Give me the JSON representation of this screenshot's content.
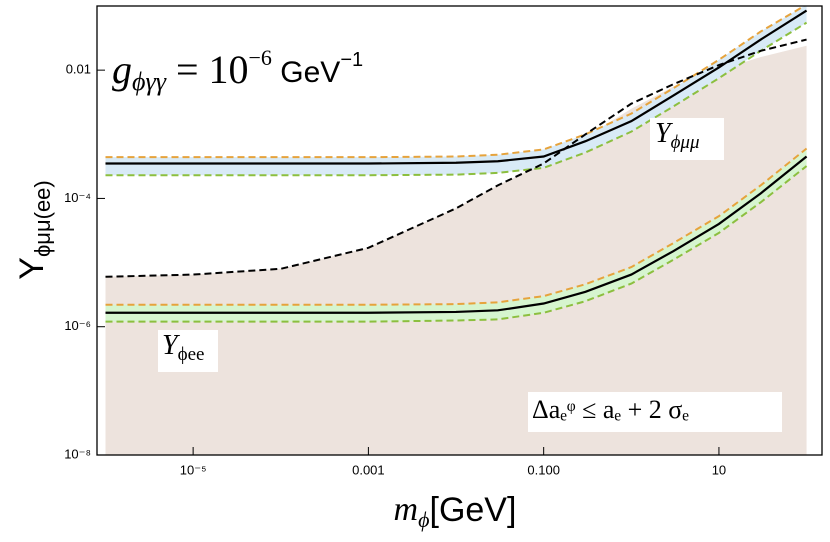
{
  "chart_data": {
    "type": "line",
    "xlog": true,
    "ylog": true,
    "xlim": [
      8e-07,
      150
    ],
    "ylim": [
      1e-08,
      0.1
    ],
    "xticks": [
      {
        "value": 1e-05,
        "label": "10⁻⁵"
      },
      0.001,
      {
        "value": 0.1,
        "label": "0.100"
      },
      10
    ],
    "yticks": [
      {
        "value": 1e-08,
        "label": "10⁻⁸"
      },
      {
        "value": 1e-06,
        "label": "10⁻⁶"
      },
      {
        "value": 0.0001,
        "label": "10⁻⁴"
      },
      0.01
    ],
    "x_label": {
      "main": "m",
      "sub": "ϕ",
      "rest": "[GeV]"
    },
    "y_label": {
      "main": "Y",
      "sub": "ϕμμ(ee)"
    },
    "annotations": {
      "coupling": {
        "main": "g",
        "sub": "ϕγγ",
        "rest": " = 10",
        "sup": "−6",
        "unit": " GeV",
        "unit_sup": "−1"
      },
      "mumu": {
        "main": "Y",
        "sub": "ϕμμ"
      },
      "ee": {
        "main": "Y",
        "sub": "ϕee"
      },
      "bound": "Δaₑᵠ ≤ aₑ + 2 σₑ"
    },
    "x": [
      1e-06,
      1e-05,
      0.0001,
      0.001,
      0.01,
      0.03,
      0.1,
      0.3,
      1,
      3,
      10,
      30,
      100
    ],
    "region": {
      "color": "#ede3dd",
      "values": [
        6e-06,
        6.5e-06,
        8e-06,
        1.7e-05,
        7e-05,
        0.00016,
        0.00035,
        0.0009,
        0.0025,
        0.0055,
        0.01,
        0.016,
        0.024
      ]
    },
    "series": [
      {
        "color": "#e6a33c",
        "style": "dashed",
        "fill": "#d8eaf6",
        "values": [
          0.00044,
          0.00044,
          0.00044,
          0.00044,
          0.00045,
          0.00048,
          0.00058,
          0.001,
          0.0021,
          0.0052,
          0.0145,
          0.04,
          0.105
        ]
      },
      {
        "color": "#8cbf3f",
        "style": "dashed",
        "values": [
          0.00023,
          0.00023,
          0.00023,
          0.00023,
          0.000235,
          0.00025,
          0.0003,
          0.00052,
          0.0011,
          0.0027,
          0.0075,
          0.02,
          0.055
        ]
      },
      {
        "color": "#000000",
        "style": "solid",
        "values": [
          0.00035,
          0.00035,
          0.00035,
          0.00035,
          0.00036,
          0.00038,
          0.00045,
          0.00078,
          0.0016,
          0.004,
          0.011,
          0.03,
          0.085
        ]
      },
      {
        "color": "#e6a33c",
        "style": "dashed",
        "fill": "#d6f5cf",
        "values": [
          2.2e-06,
          2.2e-06,
          2.2e-06,
          2.2e-06,
          2.25e-06,
          2.4e-06,
          3e-06,
          4.6e-06,
          8.5e-06,
          2e-05,
          5.3e-05,
          0.00016,
          0.0006
        ]
      },
      {
        "color": "#8cbf3f",
        "style": "dashed",
        "values": [
          1.2e-06,
          1.2e-06,
          1.2e-06,
          1.2e-06,
          1.25e-06,
          1.3e-06,
          1.65e-06,
          2.5e-06,
          4.7e-06,
          1.1e-05,
          2.9e-05,
          8.7e-05,
          0.00032
        ]
      },
      {
        "color": "#000000",
        "style": "solid",
        "values": [
          1.65e-06,
          1.65e-06,
          1.65e-06,
          1.65e-06,
          1.7e-06,
          1.8e-06,
          2.3e-06,
          3.5e-06,
          6.5e-06,
          1.5e-05,
          4e-05,
          0.00012,
          0.00045
        ]
      },
      {
        "color": "#000000",
        "style": "dashed",
        "values": [
          6e-06,
          6.5e-06,
          8e-06,
          1.7e-05,
          7e-05,
          0.00016,
          0.00035,
          0.001,
          0.003,
          0.006,
          0.012,
          0.02,
          0.03
        ]
      }
    ]
  }
}
